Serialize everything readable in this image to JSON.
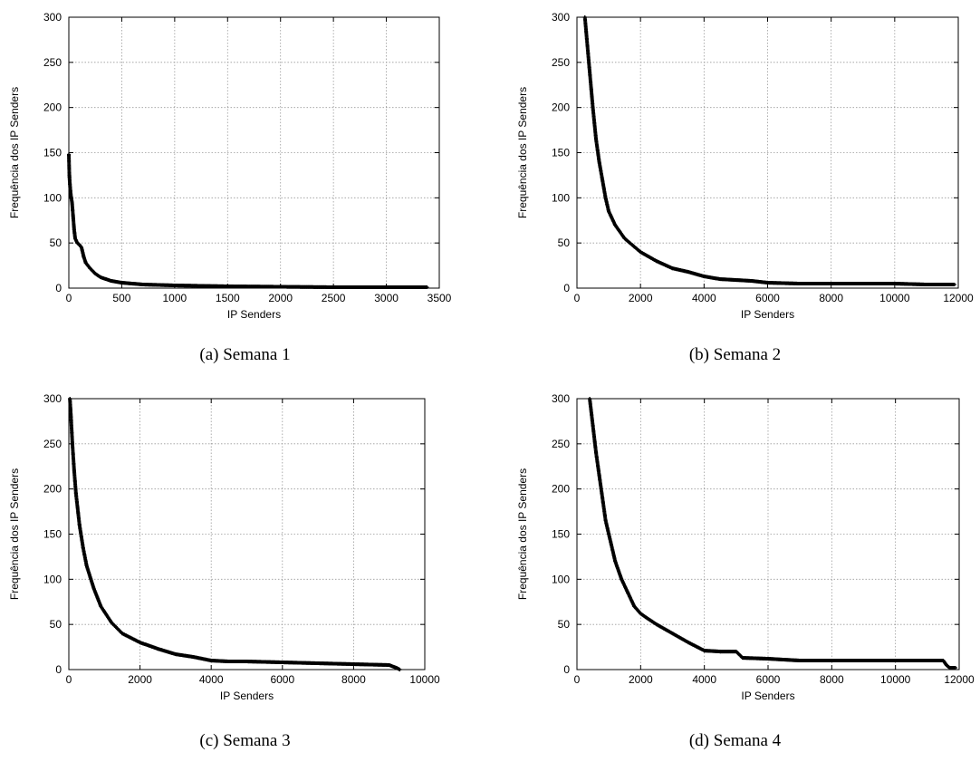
{
  "chart_data": [
    {
      "type": "scatter",
      "caption": "(a)  Semana 1",
      "xlabel": "IP Senders",
      "ylabel": "Frequência dos IP Senders",
      "xlim": [
        0,
        3500
      ],
      "ylim": [
        0,
        300
      ],
      "xticks": [
        "0",
        "500",
        "1000",
        "1500",
        "2000",
        "2500",
        "3000",
        "3500"
      ],
      "yticks": [
        "0",
        "50",
        "100",
        "150",
        "200",
        "250",
        "300"
      ],
      "grid": true,
      "series": [
        {
          "points": [
            [
              0,
              148
            ],
            [
              5,
              125
            ],
            [
              10,
              115
            ],
            [
              15,
              108
            ],
            [
              20,
              102
            ],
            [
              30,
              95
            ],
            [
              40,
              80
            ],
            [
              50,
              65
            ],
            [
              60,
              55
            ],
            [
              80,
              50
            ],
            [
              100,
              48
            ],
            [
              120,
              45
            ],
            [
              140,
              35
            ],
            [
              160,
              28
            ],
            [
              200,
              22
            ],
            [
              250,
              16
            ],
            [
              300,
              12
            ],
            [
              400,
              8
            ],
            [
              500,
              6
            ],
            [
              700,
              4
            ],
            [
              1000,
              3
            ],
            [
              1500,
              2
            ],
            [
              2000,
              1.5
            ],
            [
              2500,
              1
            ],
            [
              3000,
              1
            ],
            [
              3390,
              1
            ]
          ]
        }
      ]
    },
    {
      "type": "scatter",
      "caption": "(b)  Semana 2",
      "xlabel": "IP Senders",
      "ylabel": "Frequência dos IP Senders",
      "xlim": [
        0,
        12000
      ],
      "ylim": [
        0,
        300
      ],
      "xticks": [
        "0",
        "2000",
        "4000",
        "6000",
        "8000",
        "10000",
        "12000"
      ],
      "yticks": [
        "0",
        "50",
        "100",
        "150",
        "200",
        "250",
        "300"
      ],
      "grid": true,
      "series": [
        {
          "points": [
            [
              250,
              300
            ],
            [
              300,
              280
            ],
            [
              400,
              240
            ],
            [
              500,
              200
            ],
            [
              600,
              165
            ],
            [
              700,
              140
            ],
            [
              800,
              120
            ],
            [
              900,
              100
            ],
            [
              1000,
              85
            ],
            [
              1200,
              70
            ],
            [
              1500,
              55
            ],
            [
              2000,
              40
            ],
            [
              2500,
              30
            ],
            [
              3000,
              22
            ],
            [
              3500,
              18
            ],
            [
              4000,
              13
            ],
            [
              4500,
              10
            ],
            [
              5000,
              9
            ],
            [
              5500,
              8
            ],
            [
              6000,
              6
            ],
            [
              7000,
              5
            ],
            [
              8000,
              5
            ],
            [
              9000,
              5
            ],
            [
              10000,
              5
            ],
            [
              11000,
              4
            ],
            [
              11900,
              4
            ]
          ]
        }
      ]
    },
    {
      "type": "scatter",
      "caption": "(c)  Semana 3",
      "xlabel": "IP Senders",
      "ylabel": "Frequência dos IP Senders",
      "xlim": [
        0,
        10000
      ],
      "ylim": [
        0,
        300
      ],
      "xticks": [
        "0",
        "2000",
        "4000",
        "6000",
        "8000",
        "10000"
      ],
      "yticks": [
        "0",
        "50",
        "100",
        "150",
        "200",
        "250",
        "300"
      ],
      "grid": true,
      "series": [
        {
          "points": [
            [
              30,
              300
            ],
            [
              60,
              280
            ],
            [
              100,
              250
            ],
            [
              150,
              220
            ],
            [
              200,
              195
            ],
            [
              300,
              160
            ],
            [
              400,
              135
            ],
            [
              500,
              115
            ],
            [
              700,
              90
            ],
            [
              900,
              70
            ],
            [
              1200,
              52
            ],
            [
              1500,
              40
            ],
            [
              2000,
              30
            ],
            [
              2500,
              23
            ],
            [
              3000,
              17
            ],
            [
              3500,
              14
            ],
            [
              4000,
              10
            ],
            [
              4500,
              9
            ],
            [
              5000,
              9
            ],
            [
              6000,
              8
            ],
            [
              7000,
              7
            ],
            [
              8000,
              6
            ],
            [
              9000,
              5
            ],
            [
              9200,
              2
            ],
            [
              9300,
              0
            ]
          ]
        }
      ]
    },
    {
      "type": "scatter",
      "caption": "(d)  Semana 4",
      "xlabel": "IP Senders",
      "ylabel": "Frequência dos IP Senders",
      "xlim": [
        0,
        12000
      ],
      "ylim": [
        0,
        300
      ],
      "xticks": [
        "0",
        "2000",
        "4000",
        "6000",
        "8000",
        "10000",
        "12000"
      ],
      "yticks": [
        "0",
        "50",
        "100",
        "150",
        "200",
        "250",
        "300"
      ],
      "grid": true,
      "series": [
        {
          "points": [
            [
              400,
              300
            ],
            [
              500,
              270
            ],
            [
              600,
              240
            ],
            [
              700,
              215
            ],
            [
              800,
              190
            ],
            [
              900,
              165
            ],
            [
              1000,
              150
            ],
            [
              1200,
              120
            ],
            [
              1400,
              100
            ],
            [
              1600,
              85
            ],
            [
              1800,
              70
            ],
            [
              2000,
              62
            ],
            [
              2200,
              57
            ],
            [
              2500,
              50
            ],
            [
              3000,
              40
            ],
            [
              3500,
              30
            ],
            [
              4000,
              21
            ],
            [
              4500,
              20
            ],
            [
              5000,
              20
            ],
            [
              5200,
              13
            ],
            [
              6000,
              12
            ],
            [
              7000,
              10
            ],
            [
              8000,
              10
            ],
            [
              9000,
              10
            ],
            [
              10000,
              10
            ],
            [
              11000,
              10
            ],
            [
              11500,
              10
            ],
            [
              11600,
              5
            ],
            [
              11700,
              2
            ],
            [
              11900,
              2
            ]
          ]
        }
      ]
    }
  ]
}
